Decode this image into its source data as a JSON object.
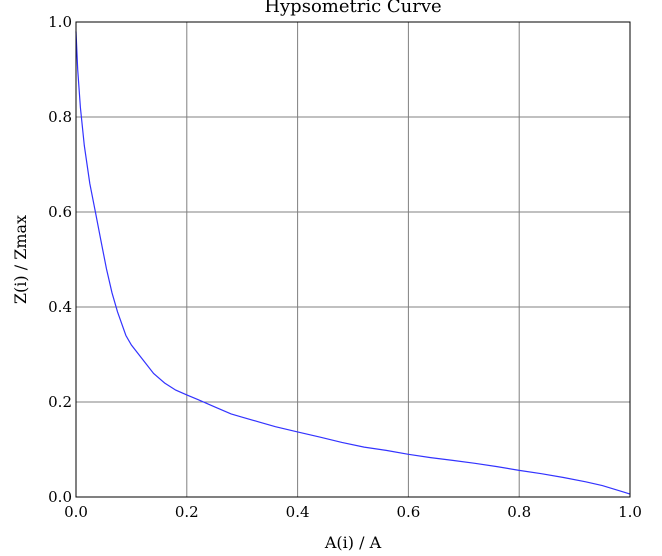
{
  "chart_data": {
    "type": "line",
    "title": "Hypsometric Curve",
    "xlabel": "A(i) / A",
    "ylabel": "Z(i) / Zmax",
    "xlim": [
      0.0,
      1.0
    ],
    "ylim": [
      0.0,
      1.0
    ],
    "x_ticks": [
      "0.0",
      "0.2",
      "0.4",
      "0.6",
      "0.8",
      "1.0"
    ],
    "y_ticks": [
      "0.0",
      "0.2",
      "0.4",
      "0.6",
      "0.8",
      "1.0"
    ],
    "grid": true,
    "line_color": "#3333ff",
    "grid_color": "#808080",
    "series": [
      {
        "x": [
          0.0,
          0.003,
          0.008,
          0.015,
          0.025,
          0.035,
          0.045,
          0.055,
          0.065,
          0.075,
          0.09,
          0.1,
          0.12,
          0.14,
          0.16,
          0.18,
          0.2,
          0.22,
          0.25,
          0.28,
          0.3,
          0.33,
          0.36,
          0.4,
          0.44,
          0.48,
          0.52,
          0.56,
          0.6,
          0.64,
          0.68,
          0.72,
          0.76,
          0.8,
          0.84,
          0.88,
          0.92,
          0.95,
          0.97,
          0.99,
          1.0
        ],
        "y": [
          0.98,
          0.9,
          0.82,
          0.74,
          0.66,
          0.6,
          0.54,
          0.48,
          0.43,
          0.39,
          0.34,
          0.32,
          0.29,
          0.26,
          0.24,
          0.225,
          0.215,
          0.205,
          0.19,
          0.175,
          0.168,
          0.158,
          0.148,
          0.137,
          0.126,
          0.115,
          0.105,
          0.098,
          0.09,
          0.083,
          0.077,
          0.071,
          0.064,
          0.056,
          0.049,
          0.041,
          0.032,
          0.024,
          0.017,
          0.01,
          0.006
        ]
      }
    ]
  }
}
